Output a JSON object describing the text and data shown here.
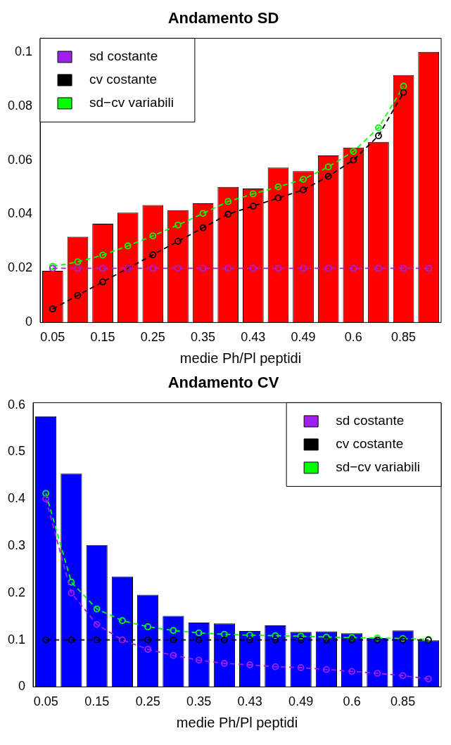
{
  "chart_data": [
    {
      "type": "bar",
      "title": "Andamento SD",
      "xlabel": "medie Ph/Pl peptidi",
      "categories": [
        "0.05",
        null,
        "0.15",
        null,
        "0.25",
        null,
        "0.35",
        null,
        "0.43",
        null,
        "0.49",
        null,
        "0.6",
        null,
        "0.85",
        null
      ],
      "series": [
        {
          "color": "#ff0000",
          "values": [
            0.0191,
            0.0317,
            0.0365,
            0.0406,
            0.0434,
            0.0415,
            0.044,
            0.0501,
            0.0495,
            0.0572,
            0.0559,
            0.0617,
            0.0646,
            0.0667,
            0.0914,
            0.1
          ]
        },
        {
          "type": "line",
          "name": "sd costante",
          "color": "#a020f0",
          "values": [
            0.02,
            0.02,
            0.02,
            0.02,
            0.02,
            0.02,
            0.02,
            0.02,
            0.02,
            0.02,
            0.02,
            0.02,
            0.02,
            0.02,
            0.02,
            0.02
          ]
        },
        {
          "type": "line",
          "name": "cv costante",
          "color": "#000000",
          "values": [
            0.005,
            0.01,
            0.015,
            0.02,
            0.025,
            0.03,
            0.035,
            0.04,
            0.043,
            0.046,
            0.049,
            0.054,
            0.06,
            0.069,
            0.085,
            null
          ]
        },
        {
          "type": "line",
          "name": "sd−cv variabili",
          "color": "#00ff00",
          "values": [
            0.0207,
            0.0224,
            0.0249,
            0.0283,
            0.032,
            0.036,
            0.0403,
            0.0447,
            0.0475,
            0.0501,
            0.0529,
            0.0575,
            0.0632,
            0.0719,
            0.0873,
            null
          ]
        }
      ],
      "ylim": [
        0,
        0.105
      ],
      "yticks": [
        0,
        0.02,
        0.04,
        0.06,
        0.08,
        0.1
      ],
      "grid": false,
      "legend": "top left",
      "marker": "circle",
      "line_style": "dashed"
    },
    {
      "type": "bar",
      "title": "Andamento CV",
      "xlabel": "medie Ph/Pl peptidi",
      "categories": [
        "0.05",
        null,
        "0.15",
        null,
        "0.25",
        null,
        "0.35",
        null,
        "0.43",
        null,
        "0.49",
        null,
        "0.6",
        null,
        "0.85",
        null
      ],
      "series": [
        {
          "color": "#0000ff",
          "values": [
            0.576,
            0.454,
            0.302,
            0.235,
            0.196,
            0.151,
            0.137,
            0.135,
            0.119,
            0.131,
            0.117,
            0.118,
            0.114,
            0.104,
            0.12,
            0.099
          ]
        },
        {
          "type": "line",
          "name": "sd costante",
          "color": "#a020f0",
          "values": [
            0.4,
            0.2,
            0.133,
            0.1,
            0.08,
            0.067,
            0.057,
            0.05,
            0.047,
            0.043,
            0.041,
            0.037,
            0.033,
            0.029,
            0.024,
            0.017
          ]
        },
        {
          "type": "line",
          "name": "cv costante",
          "color": "#000000",
          "values": [
            0.1,
            0.1,
            0.1,
            0.1,
            0.1,
            0.1,
            0.1,
            0.1,
            0.1,
            0.1,
            0.1,
            0.1,
            0.1,
            0.1,
            0.1,
            0.1
          ]
        },
        {
          "type": "line",
          "name": "sd−cv variabili",
          "color": "#00ff00",
          "values": [
            0.412,
            0.223,
            0.166,
            0.141,
            0.128,
            0.12,
            0.115,
            0.112,
            0.11,
            0.109,
            0.108,
            0.106,
            0.105,
            0.104,
            0.103,
            0.101
          ]
        }
      ],
      "ylim": [
        0,
        0.605
      ],
      "yticks": [
        0,
        0.1,
        0.2,
        0.3,
        0.4,
        0.5,
        0.6
      ],
      "grid": false,
      "legend": "top right",
      "marker": "circle",
      "line_style": "dashed"
    }
  ]
}
